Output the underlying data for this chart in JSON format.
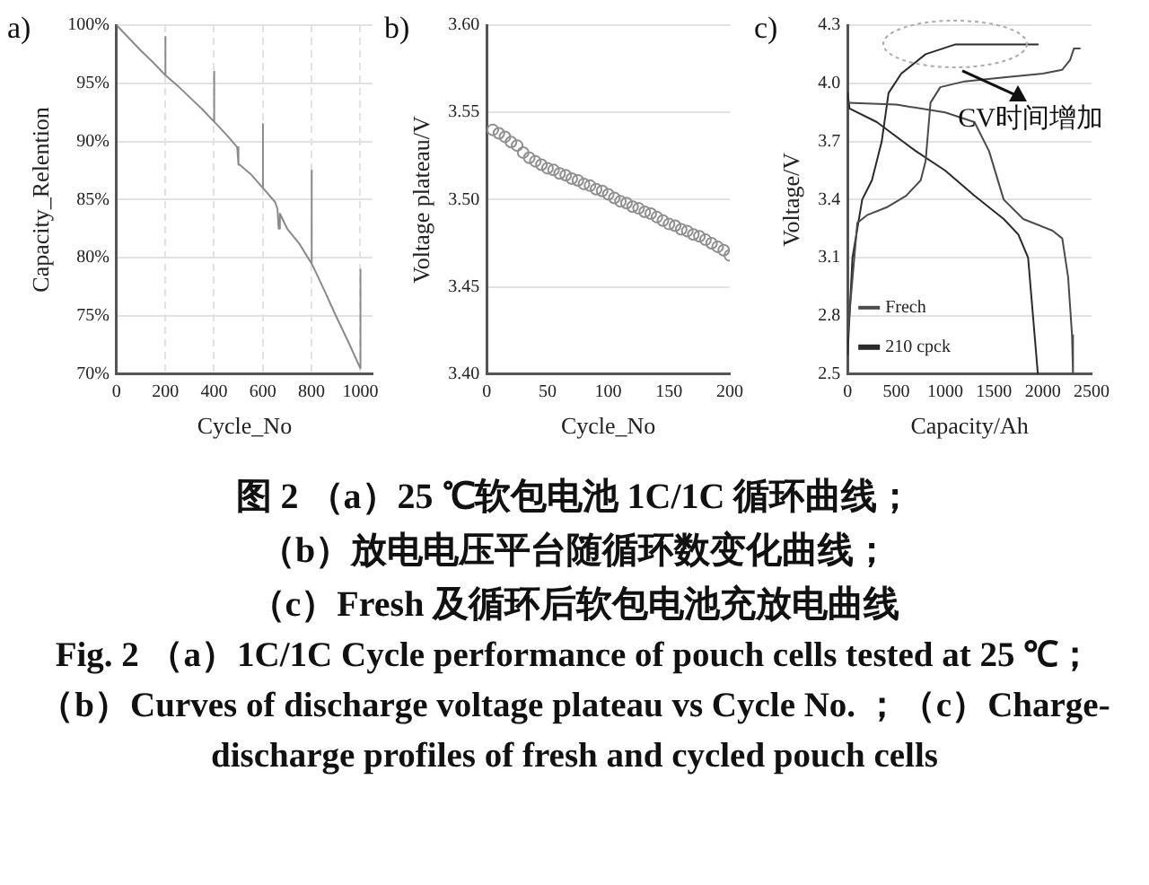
{
  "chart_data": [
    {
      "type": "line",
      "title": "a)",
      "xlabel": "Cycle_No",
      "ylabel": "Capacity_Relention",
      "color": "#8a8a8a",
      "marker": "none",
      "grid": true,
      "xlim": [
        0,
        1050
      ],
      "xticks": [
        0,
        200,
        400,
        600,
        800,
        1000
      ],
      "ylim": [
        70,
        100
      ],
      "yticks": [
        {
          "value": 70,
          "label": "70%"
        },
        {
          "value": 75,
          "label": "75%"
        },
        {
          "value": 80,
          "label": "80%"
        },
        {
          "value": 85,
          "label": "85%"
        },
        {
          "value": 90,
          "label": "90%"
        },
        {
          "value": 95,
          "label": "95%"
        },
        {
          "value": 100,
          "label": "100%"
        }
      ],
      "x": [
        0,
        50,
        100,
        150,
        200,
        200,
        201,
        250,
        300,
        350,
        400,
        400,
        401,
        450,
        495,
        500,
        505,
        550,
        600,
        600,
        601,
        650,
        660,
        665,
        670,
        700,
        750,
        800,
        800,
        801,
        850,
        900,
        950,
        1000,
        1000,
        1001
      ],
      "values": [
        100,
        98.9,
        97.8,
        96.8,
        95.7,
        99,
        95.7,
        94.8,
        93.8,
        92.8,
        91.7,
        96,
        91.7,
        90.6,
        89.5,
        88,
        88,
        87.2,
        86,
        91.5,
        86,
        84.8,
        84.2,
        82.5,
        83.8,
        82.5,
        81.2,
        79.5,
        87.5,
        79.5,
        77.3,
        75,
        72.8,
        70.5,
        79,
        70.5
      ]
    },
    {
      "type": "scatter",
      "title": "b)",
      "xlabel": "Cycle_No",
      "ylabel": "Voltage plateau/V",
      "color": "#909090",
      "marker": "circle",
      "grid": "y",
      "xlim": [
        0,
        200
      ],
      "xticks": [
        0,
        50,
        100,
        150,
        200
      ],
      "ylim": [
        3.4,
        3.6
      ],
      "yticks": [
        {
          "value": 3.4,
          "label": "3.40"
        },
        3.45,
        {
          "value": 3.5,
          "label": "3.50"
        },
        3.55,
        {
          "value": 3.6,
          "label": "3.60"
        }
      ],
      "x": [
        5,
        10,
        15,
        20,
        25,
        30,
        35,
        40,
        45,
        50,
        55,
        60,
        65,
        70,
        75,
        80,
        85,
        90,
        95,
        100,
        105,
        110,
        115,
        120,
        125,
        130,
        135,
        140,
        145,
        150,
        155,
        160,
        165,
        170,
        175,
        180,
        185,
        190,
        195,
        200
      ],
      "values": [
        3.54,
        3.538,
        3.536,
        3.533,
        3.531,
        3.527,
        3.524,
        3.522,
        3.52,
        3.518,
        3.517,
        3.515,
        3.514,
        3.512,
        3.511,
        3.509,
        3.508,
        3.506,
        3.505,
        3.503,
        3.501,
        3.499,
        3.498,
        3.496,
        3.495,
        3.493,
        3.492,
        3.49,
        3.488,
        3.486,
        3.485,
        3.483,
        3.482,
        3.48,
        3.479,
        3.477,
        3.475,
        3.473,
        3.471,
        3.468
      ]
    },
    {
      "type": "line",
      "title": "c)",
      "xlabel": "Capacity/Ah",
      "ylabel": "Voltage/V",
      "marker": "none",
      "grid": "y",
      "legend": "bottom left",
      "xlim": [
        0,
        2500
      ],
      "xticks": [
        0,
        500,
        1000,
        1500,
        2000,
        2500
      ],
      "ylim": [
        2.5,
        4.3
      ],
      "yticks": [
        2.5,
        2.8,
        3.1,
        3.4,
        3.7,
        {
          "value": 4,
          "label": "4.0"
        },
        4.3
      ],
      "annotations": [
        "CV时间增加"
      ],
      "series": [
        {
          "name": "Frech",
          "color": "#4a4a4a",
          "x": [
            0,
            100,
            200,
            400,
            600,
            750,
            800,
            850,
            950,
            1200,
            1600,
            2000,
            2200,
            2280,
            2320,
            2380
          ],
          "values": [
            2.7,
            3.28,
            3.32,
            3.36,
            3.42,
            3.5,
            3.6,
            3.9,
            3.98,
            4.01,
            4.03,
            4.05,
            4.07,
            4.12,
            4.18,
            4.18
          ]
        },
        {
          "color": "#4a4a4a",
          "x": [
            0,
            500,
            1000,
            1300,
            1450,
            1600,
            1800,
            2100,
            2200,
            2260,
            2300,
            2310
          ],
          "values": [
            3.9,
            3.89,
            3.85,
            3.8,
            3.65,
            3.4,
            3.3,
            3.24,
            3.2,
            3.0,
            2.7,
            2.5
          ]
        },
        {
          "name": "210 cpck",
          "color": "#2a2a2a",
          "x": [
            0,
            50,
            150,
            250,
            350,
            420,
            550,
            800,
            1100,
            1950
          ],
          "values": [
            2.6,
            3.1,
            3.4,
            3.5,
            3.7,
            3.95,
            4.05,
            4.15,
            4.2,
            4.2
          ]
        },
        {
          "color": "#2a2a2a",
          "x": [
            0,
            20,
            300,
            700,
            1000,
            1300,
            1600,
            1750,
            1850,
            1900,
            1950
          ],
          "values": [
            3.95,
            3.87,
            3.8,
            3.65,
            3.55,
            3.42,
            3.3,
            3.22,
            3.1,
            2.8,
            2.5
          ]
        }
      ]
    },
    {
      "type": "other",
      "annotations": [
        "图 2 （a）25 ℃软包电池 1C/1C 循环曲线；",
        "（b）放电电压平台随循环数变化曲线；",
        "（c）Fresh 及循环后软包电池充放电曲线",
        "Fig. 2 （a）1C/1C Cycle performance of pouch cells tested at 25 ℃；（b）Curves of discharge voltage plateau vs Cycle No. ；（c）Charge-discharge profiles of fresh and cycled pouch cells"
      ]
    }
  ]
}
